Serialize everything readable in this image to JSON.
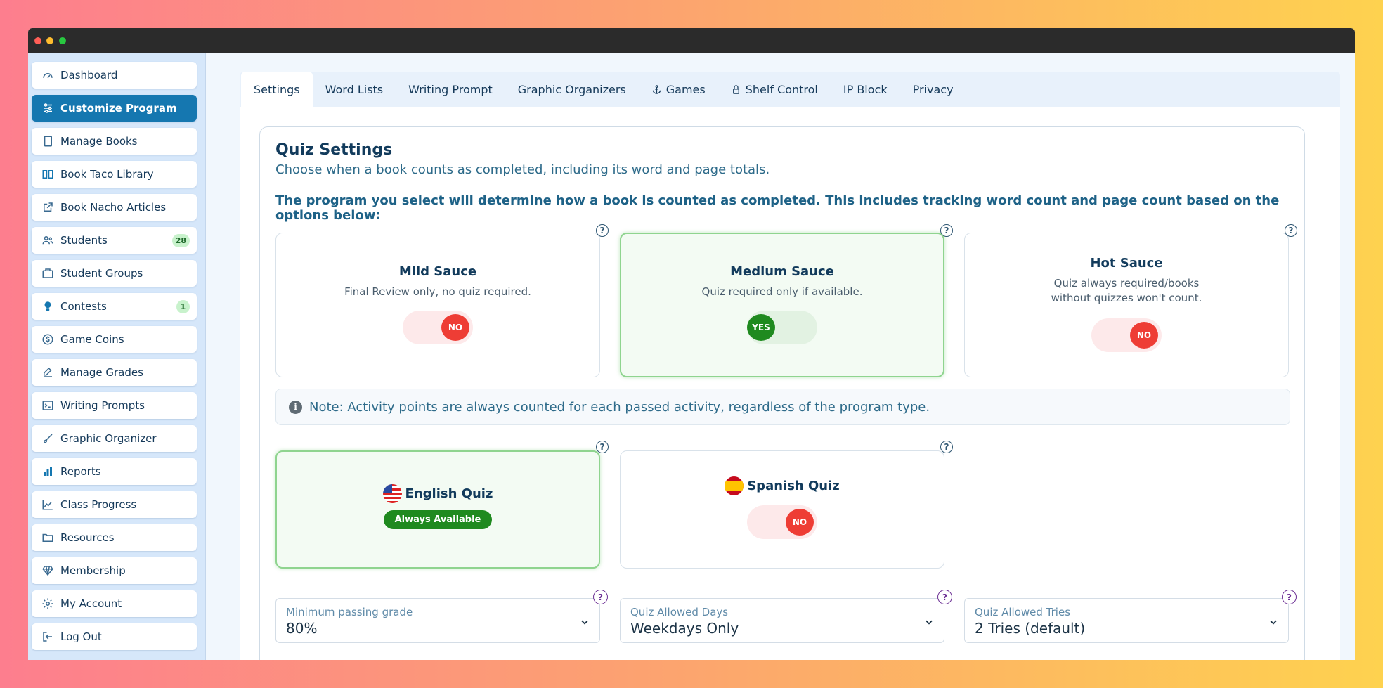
{
  "sidebar": {
    "items": [
      {
        "label": "Dashboard",
        "icon": "dashboard-icon"
      },
      {
        "label": "Customize Program",
        "icon": "sliders-icon",
        "active": true
      },
      {
        "label": "Manage Books",
        "icon": "book-icon"
      },
      {
        "label": "Book Taco Library",
        "icon": "open-book-icon"
      },
      {
        "label": "Book Nacho Articles",
        "icon": "external-link-icon"
      },
      {
        "label": "Students",
        "icon": "users-icon",
        "badge": "28"
      },
      {
        "label": "Student Groups",
        "icon": "briefcase-icon"
      },
      {
        "label": "Contests",
        "icon": "bulb-icon",
        "badge": "1"
      },
      {
        "label": "Game Coins",
        "icon": "coin-icon"
      },
      {
        "label": "Manage Grades",
        "icon": "edit-icon"
      },
      {
        "label": "Writing Prompts",
        "icon": "terminal-icon"
      },
      {
        "label": "Graphic Organizer",
        "icon": "brush-icon"
      },
      {
        "label": "Reports",
        "icon": "bar-chart-icon"
      },
      {
        "label": "Class Progress",
        "icon": "line-chart-icon"
      },
      {
        "label": "Resources",
        "icon": "folder-icon"
      },
      {
        "label": "Membership",
        "icon": "diamond-icon"
      },
      {
        "label": "My Account",
        "icon": "gear-icon"
      },
      {
        "label": "Log Out",
        "icon": "logout-icon"
      }
    ]
  },
  "tabs": [
    {
      "label": "Settings",
      "active": true
    },
    {
      "label": "Word Lists"
    },
    {
      "label": "Writing Prompt"
    },
    {
      "label": "Graphic Organizers"
    },
    {
      "label": "Games",
      "icon": "anchor-icon"
    },
    {
      "label": "Shelf Control",
      "icon": "lock-icon"
    },
    {
      "label": "IP Block"
    },
    {
      "label": "Privacy"
    }
  ],
  "quiz_settings": {
    "title": "Quiz Settings",
    "subtitle": "Choose when a book counts as completed, including its word and page totals.",
    "description": "The program you select will determine how a book is counted as completed. This includes tracking word count and page count based on the options below:",
    "help_mark": "?",
    "programs": [
      {
        "title": "Mild Sauce",
        "desc": "Final Review only, no quiz required.",
        "toggle": "NO"
      },
      {
        "title": "Medium Sauce",
        "desc": "Quiz required only if available.",
        "toggle": "YES"
      },
      {
        "title": "Hot Sauce",
        "desc_line1": "Quiz always required/books",
        "desc_line2": "without quizzes won't count.",
        "toggle": "NO"
      }
    ],
    "note": "Note: Activity points are always counted for each passed activity, regardless of the program type.",
    "note_icon": "i",
    "quizzes": {
      "english": {
        "title": "English Quiz",
        "badge": "Always Available",
        "flag": "us-flag-icon"
      },
      "spanish": {
        "title": "Spanish Quiz",
        "toggle": "NO",
        "flag": "spain-flag-icon"
      }
    },
    "fields": [
      {
        "label": "Minimum passing grade",
        "value": "80%"
      },
      {
        "label": "Quiz Allowed Days",
        "value": "Weekdays Only"
      },
      {
        "label": "Quiz Allowed Tries",
        "value": "2 Tries (default)"
      }
    ]
  },
  "colors": {
    "accent": "#1577b0",
    "success": "#1f8a1f",
    "danger": "#ee3d35"
  }
}
